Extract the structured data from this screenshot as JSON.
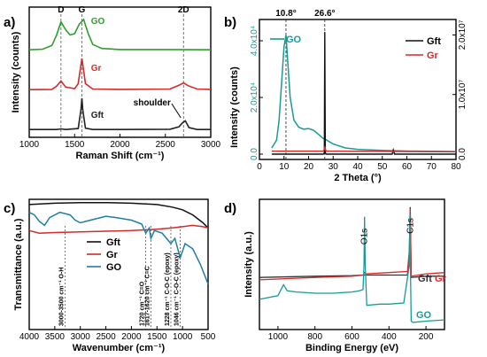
{
  "panels": {
    "a": "a)",
    "b": "b)",
    "c": "c)",
    "d": "d)"
  },
  "chart_data": [
    {
      "type": "line",
      "panel": "a)",
      "xlabel": "Raman Shift (cm⁻¹)",
      "ylabel": "Intensity (counts)",
      "xlim": [
        1000,
        3000
      ],
      "xticks": [
        "1000",
        "1500",
        "2000",
        "2500",
        "3000"
      ],
      "peak_labels": [
        {
          "text": "D",
          "x": 1350
        },
        {
          "text": "G",
          "x": 1580
        },
        {
          "text": "2D",
          "x": 2700
        }
      ],
      "annotation": "shoulder",
      "series": [
        {
          "name": "GO",
          "color": "#2e9e2e",
          "offset": 2.0,
          "x": [
            1000,
            1150,
            1250,
            1300,
            1350,
            1400,
            1450,
            1500,
            1550,
            1600,
            1650,
            1700,
            1800,
            2000,
            2500,
            3000
          ],
          "y": [
            0.02,
            0.04,
            0.15,
            0.45,
            0.85,
            0.62,
            0.46,
            0.5,
            0.78,
            0.92,
            0.5,
            0.18,
            0.06,
            0.03,
            0.03,
            0.02
          ]
        },
        {
          "name": "Gr",
          "color": "#d42a2a",
          "offset": 1.0,
          "x": [
            1000,
            1250,
            1300,
            1350,
            1400,
            1500,
            1540,
            1580,
            1620,
            1700,
            2000,
            2550,
            2650,
            2700,
            2750,
            2850,
            3000
          ],
          "y": [
            0.02,
            0.03,
            0.12,
            0.28,
            0.1,
            0.05,
            0.2,
            0.95,
            0.2,
            0.04,
            0.03,
            0.04,
            0.15,
            0.22,
            0.14,
            0.04,
            0.03
          ]
        },
        {
          "name": "Gft",
          "color": "#222222",
          "offset": 0.0,
          "x": [
            1000,
            1300,
            1350,
            1400,
            1540,
            1570,
            1580,
            1590,
            1620,
            1700,
            2000,
            2550,
            2650,
            2690,
            2720,
            2760,
            2850,
            3000
          ],
          "y": [
            0.02,
            0.02,
            0.04,
            0.02,
            0.05,
            0.6,
            0.95,
            0.6,
            0.06,
            0.02,
            0.02,
            0.03,
            0.1,
            0.22,
            0.28,
            0.08,
            0.02,
            0.02
          ]
        }
      ]
    },
    {
      "type": "line",
      "panel": "b)",
      "xlabel": "2 Theta (°)",
      "ylabel": "Intensity (counts)",
      "xlim": [
        0,
        80
      ],
      "xticks": [
        "0",
        "10",
        "20",
        "30",
        "40",
        "50",
        "60",
        "70",
        "80"
      ],
      "left_ylim": [
        0,
        45000
      ],
      "left_yticks": [
        "0.0",
        "2.0x10⁴",
        "4.0x10⁴"
      ],
      "right_ylim": [
        0,
        22000000.0
      ],
      "right_yticks": [
        "0.0",
        "1.0x10⁷",
        "2.0x10⁷"
      ],
      "peak_labels": [
        {
          "text": "10.8°",
          "x": 10.8
        },
        {
          "text": "26.6°",
          "x": 26.6
        }
      ],
      "series": [
        {
          "name": "GO",
          "color": "#1a9a96",
          "axis": "left",
          "x": [
            5,
            7,
            8,
            9,
            10,
            10.8,
            11.5,
            12.5,
            14,
            16,
            18,
            20,
            22,
            24,
            26,
            27,
            28,
            30,
            35,
            40,
            50,
            60,
            70,
            80
          ],
          "y": [
            2200,
            5000,
            12000,
            25000,
            38000,
            42000,
            33000,
            20000,
            12000,
            9500,
            8800,
            9000,
            8400,
            7000,
            5500,
            5200,
            4600,
            3600,
            2200,
            1700,
            1300,
            1100,
            1000,
            900
          ]
        },
        {
          "name": "Gft",
          "color": "#111111",
          "axis": "right",
          "x": [
            5,
            26,
            26.4,
            26.6,
            26.8,
            27.2,
            54,
            54.5,
            55,
            80
          ],
          "y": [
            0,
            0,
            200000,
            20500000,
            200000,
            0,
            0,
            700000,
            0,
            0
          ]
        },
        {
          "name": "Gr",
          "color": "#d42a2a",
          "axis": "right",
          "x": [
            5,
            26,
            26.4,
            26.6,
            26.8,
            27.2,
            80
          ],
          "y": [
            500000,
            500000,
            800000,
            1300000,
            800000,
            500000,
            400000
          ]
        }
      ]
    },
    {
      "type": "line",
      "panel": "c)",
      "xlabel": "Wavenumber (cm⁻¹)",
      "ylabel": "Transmittance (a.u.)",
      "xlim": [
        4000,
        500
      ],
      "xticks": [
        "4000",
        "3500",
        "3000",
        "2500",
        "2000",
        "1500",
        "1000",
        "500"
      ],
      "band_labels": [
        {
          "text": "3000-3500 cm⁻¹ O-H",
          "x": 3300
        },
        {
          "text": "1720 cm⁻¹ C=O",
          "x": 1720
        },
        {
          "text": "1617-1620 cm⁻¹ C=C",
          "x": 1618
        },
        {
          "text": "1228 cm⁻¹ C-O-C (epoxy)",
          "x": 1228
        },
        {
          "text": "1046 cm⁻¹ C-O-C (epoxy)",
          "x": 1046
        }
      ],
      "series": [
        {
          "name": "Gft",
          "color": "#111111",
          "x": [
            4000,
            3500,
            3000,
            2500,
            2000,
            1500,
            1200,
            1000,
            800,
            600,
            500
          ],
          "y": [
            0.96,
            0.97,
            0.975,
            0.975,
            0.97,
            0.96,
            0.94,
            0.92,
            0.88,
            0.82,
            0.78
          ]
        },
        {
          "name": "Gr",
          "color": "#d42a2a",
          "x": [
            4000,
            3800,
            3500,
            3000,
            2500,
            2000,
            1500,
            1200,
            1000,
            800,
            600,
            500
          ],
          "y": [
            0.76,
            0.74,
            0.745,
            0.75,
            0.755,
            0.76,
            0.77,
            0.78,
            0.79,
            0.8,
            0.79,
            0.78
          ]
        },
        {
          "name": "GO",
          "color": "#1f7fa3",
          "x": [
            4000,
            3900,
            3800,
            3700,
            3600,
            3400,
            3200,
            3100,
            3000,
            2800,
            2500,
            2300,
            2000,
            1800,
            1720,
            1650,
            1620,
            1550,
            1400,
            1228,
            1150,
            1046,
            950,
            800,
            650,
            550,
            500
          ],
          "y": [
            0.9,
            0.88,
            0.83,
            0.8,
            0.86,
            0.9,
            0.88,
            0.84,
            0.82,
            0.84,
            0.87,
            0.86,
            0.84,
            0.81,
            0.74,
            0.78,
            0.7,
            0.76,
            0.74,
            0.66,
            0.7,
            0.55,
            0.66,
            0.62,
            0.5,
            0.4,
            0.35
          ]
        }
      ],
      "ylim": [
        0,
        1
      ]
    },
    {
      "type": "line",
      "panel": "d)",
      "xlabel": "Binding Energy (eV)",
      "ylabel": "Intensity (a.u.)",
      "xlim": [
        1100,
        100
      ],
      "xticks": [
        "1000",
        "800",
        "600",
        "400",
        "200"
      ],
      "peak_labels": [
        {
          "text": "O1s",
          "x": 532
        },
        {
          "text": "C1s",
          "x": 285
        }
      ],
      "legend_texts": [
        "Gft",
        "Gr",
        "GO"
      ],
      "series": [
        {
          "name": "Gft",
          "color": "#333333",
          "x": [
            1100,
            800,
            600,
            540,
            532,
            525,
            400,
            300,
            290,
            285,
            280,
            200,
            100
          ],
          "y": [
            0.4,
            0.41,
            0.415,
            0.42,
            0.42,
            0.42,
            0.42,
            0.42,
            0.6,
            0.98,
            0.4,
            0.41,
            0.41
          ]
        },
        {
          "name": "Gr",
          "color": "#d42a2a",
          "x": [
            1100,
            800,
            600,
            540,
            532,
            525,
            400,
            300,
            290,
            285,
            280,
            200,
            100
          ],
          "y": [
            0.38,
            0.4,
            0.41,
            0.42,
            0.44,
            0.43,
            0.44,
            0.45,
            0.62,
            0.97,
            0.41,
            0.43,
            0.44
          ]
        },
        {
          "name": "GO",
          "color": "#1a9a96",
          "x": [
            1100,
            1000,
            990,
            970,
            950,
            900,
            800,
            700,
            600,
            560,
            540,
            535,
            532,
            528,
            520,
            450,
            400,
            320,
            290,
            286,
            284,
            280,
            270,
            200,
            100
          ],
          "y": [
            0.22,
            0.25,
            0.28,
            0.34,
            0.29,
            0.28,
            0.27,
            0.27,
            0.28,
            0.29,
            0.3,
            0.5,
            0.9,
            0.5,
            0.17,
            0.18,
            0.18,
            0.19,
            0.5,
            0.92,
            0.5,
            0.04,
            0.03,
            0.04,
            0.05
          ]
        }
      ],
      "ylim": [
        0,
        1
      ]
    }
  ]
}
